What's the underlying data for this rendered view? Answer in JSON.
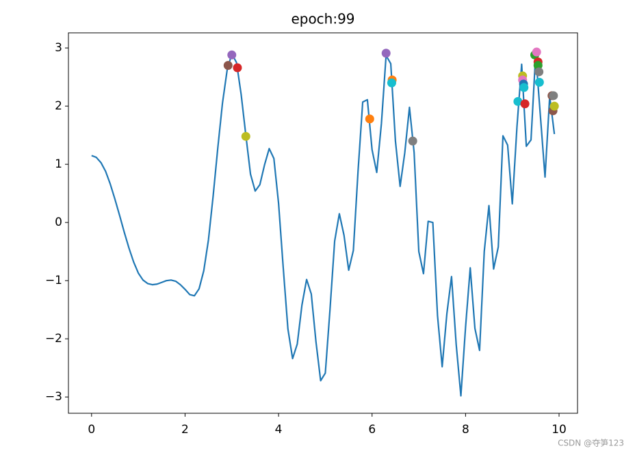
{
  "chart_data": {
    "type": "line",
    "title": "epoch:99",
    "color": "#1f77b4",
    "x": [
      0.0,
      0.1,
      0.2,
      0.3,
      0.4,
      0.5,
      0.6,
      0.7,
      0.8,
      0.9,
      1.0,
      1.1,
      1.2,
      1.3,
      1.4,
      1.5,
      1.6,
      1.7,
      1.8,
      1.9,
      2.0,
      2.1,
      2.2,
      2.3,
      2.4,
      2.5,
      2.6,
      2.7,
      2.8,
      2.9,
      3.0,
      3.1,
      3.2,
      3.3,
      3.4,
      3.5,
      3.6,
      3.7,
      3.8,
      3.9,
      4.0,
      4.1,
      4.2,
      4.3,
      4.4,
      4.5,
      4.6,
      4.7,
      4.8,
      4.9,
      5.0,
      5.1,
      5.2,
      5.3,
      5.4,
      5.5,
      5.6,
      5.7,
      5.8,
      5.9,
      6.0,
      6.1,
      6.2,
      6.3,
      6.4,
      6.5,
      6.6,
      6.7,
      6.8,
      6.9,
      7.0,
      7.1,
      7.2,
      7.3,
      7.4,
      7.5,
      7.6,
      7.7,
      7.8,
      7.9,
      8.0,
      8.1,
      8.2,
      8.3,
      8.4,
      8.5,
      8.6,
      8.7,
      8.8,
      8.9,
      9.0,
      9.1,
      9.2,
      9.3,
      9.4,
      9.5,
      9.6,
      9.7,
      9.8,
      9.9
    ],
    "values": [
      1.15,
      1.12,
      1.03,
      0.88,
      0.66,
      0.4,
      0.12,
      -0.17,
      -0.44,
      -0.68,
      -0.87,
      -0.99,
      -1.05,
      -1.07,
      -1.06,
      -1.03,
      -1.0,
      -0.99,
      -1.01,
      -1.07,
      -1.15,
      -1.24,
      -1.26,
      -1.14,
      -0.83,
      -0.3,
      0.45,
      1.28,
      2.05,
      2.62,
      2.9,
      2.75,
      2.2,
      1.5,
      0.83,
      0.54,
      0.65,
      0.99,
      1.27,
      1.1,
      0.33,
      -0.78,
      -1.83,
      -2.34,
      -2.09,
      -1.42,
      -0.98,
      -1.23,
      -2.05,
      -2.72,
      -2.59,
      -1.5,
      -0.32,
      0.15,
      -0.22,
      -0.82,
      -0.48,
      0.88,
      2.07,
      2.11,
      1.25,
      0.86,
      1.7,
      2.87,
      2.73,
      1.4,
      0.62,
      1.2,
      1.98,
      1.2,
      -0.5,
      -0.88,
      0.02,
      0.0,
      -1.6,
      -2.48,
      -1.57,
      -0.93,
      -2.1,
      -2.98,
      -1.8,
      -0.78,
      -1.82,
      -2.2,
      -0.5,
      0.29,
      -0.8,
      -0.42,
      1.49,
      1.33,
      0.32,
      1.65,
      2.72,
      1.31,
      1.42,
      2.9,
      1.84,
      0.78,
      2.17,
      1.52
    ],
    "scatter": {
      "x": [
        2.92,
        3.0,
        3.12,
        3.3,
        5.95,
        6.3,
        6.43,
        6.42,
        6.87,
        9.12,
        9.22,
        9.22,
        9.24,
        9.25,
        9.27,
        9.48,
        9.52,
        9.55,
        9.55,
        9.57,
        9.58,
        9.85,
        9.87,
        9.9,
        9.88
      ],
      "y": [
        2.7,
        2.88,
        2.66,
        1.48,
        1.78,
        2.91,
        2.45,
        2.4,
        1.4,
        2.08,
        2.52,
        2.45,
        2.38,
        2.32,
        2.04,
        2.88,
        2.93,
        2.76,
        2.7,
        2.59,
        2.41,
        2.18,
        1.92,
        2.0,
        2.18
      ],
      "colors": [
        "#8c564b",
        "#9467bd",
        "#d62728",
        "#bcbd22",
        "#ff7f0e",
        "#9467bd",
        "#ff7f0e",
        "#17becf",
        "#7f7f7f",
        "#17becf",
        "#bcbd22",
        "#e377c2",
        "#1f77b4",
        "#17becf",
        "#d62728",
        "#2ca02c",
        "#e377c2",
        "#d62728",
        "#2ca02c",
        "#7f7f7f",
        "#17becf",
        "#8c564b",
        "#8c564b",
        "#bcbd22",
        "#7f7f7f"
      ]
    },
    "xlim": [
      -0.495,
      10.395
    ],
    "ylim": [
      -3.28,
      3.26
    ],
    "xticks": [
      0,
      2,
      4,
      6,
      8,
      10
    ],
    "yticks": [
      {
        "value": -3,
        "label": "−3"
      },
      {
        "value": -2,
        "label": "−2"
      },
      {
        "value": -1,
        "label": "−1"
      },
      0,
      1,
      2,
      3
    ],
    "watermark": "CSDN @夺笋123"
  }
}
